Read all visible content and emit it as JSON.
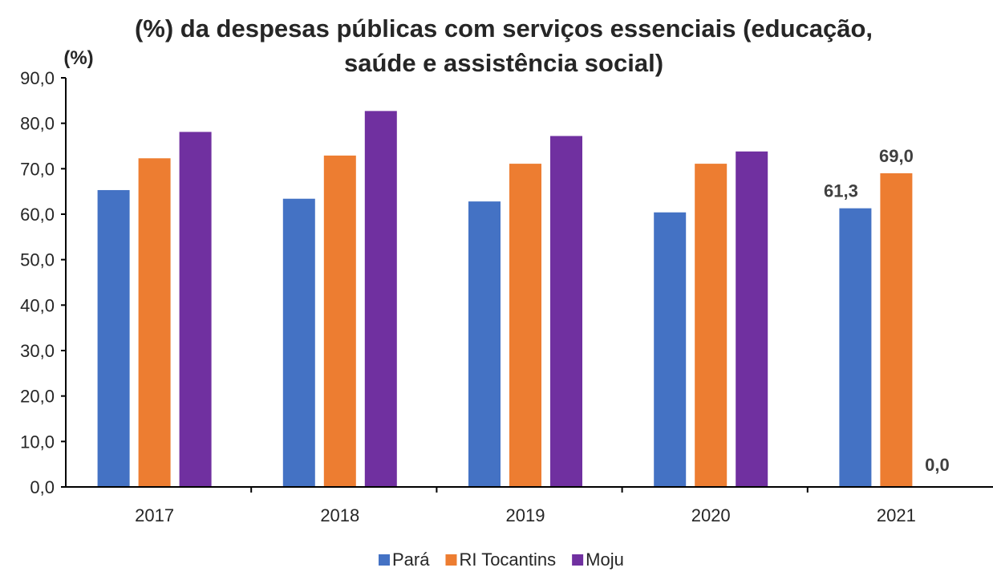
{
  "chart_data": {
    "type": "bar",
    "title_lines": [
      "(%) da despesas públicas com serviços essenciais (educação,",
      "saúde e assistência social)"
    ],
    "unit_label": "(%)",
    "categories": [
      "2017",
      "2018",
      "2019",
      "2020",
      "2021"
    ],
    "series": [
      {
        "name": "Pará",
        "color": "#4472C4",
        "values": [
          65.3,
          63.4,
          62.8,
          60.4,
          61.3
        ]
      },
      {
        "name": "RI Tocantins",
        "color": "#ED7D31",
        "values": [
          72.3,
          72.9,
          71.1,
          71.1,
          69.0
        ]
      },
      {
        "name": "Moju",
        "color": "#7030A0",
        "values": [
          78.1,
          82.7,
          77.2,
          73.8,
          0.0
        ]
      }
    ],
    "ylim": [
      0,
      90
    ],
    "yticks": [
      "0,0",
      "10,0",
      "20,0",
      "30,0",
      "40,0",
      "50,0",
      "60,0",
      "70,0",
      "80,0",
      "90,0"
    ],
    "data_labels": [
      {
        "series": 0,
        "category": 4,
        "text": "61,3"
      },
      {
        "series": 1,
        "category": 4,
        "text": "69,0"
      },
      {
        "series": 2,
        "category": 4,
        "text": "0,0"
      }
    ],
    "legend_position": "bottom-center",
    "grid": false
  }
}
